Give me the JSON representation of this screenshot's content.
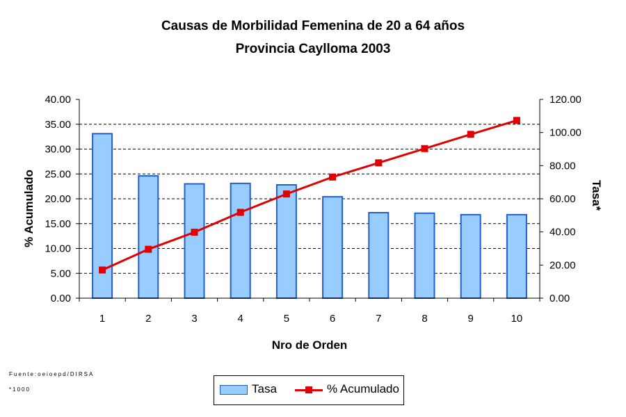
{
  "chart_data": {
    "type": "bar+line",
    "title": "Causas de Morbilidad Femenina de 20 a 64 años",
    "subtitle": "Provincia Caylloma 2003",
    "xlabel": "Nro de Orden",
    "ylabel_left": "% Acumulado",
    "ylabel_right": "Tasa*",
    "categories": [
      "1",
      "2",
      "3",
      "4",
      "5",
      "6",
      "7",
      "8",
      "9",
      "10"
    ],
    "y_left": {
      "lim": [
        0,
        40
      ],
      "ticks": [
        "0.00",
        "5.00",
        "10.00",
        "15.00",
        "20.00",
        "25.00",
        "30.00",
        "35.00",
        "40.00"
      ]
    },
    "y_right": {
      "lim": [
        0,
        120
      ],
      "ticks": [
        "0.00",
        "20.00",
        "40.00",
        "60.00",
        "80.00",
        "100.00",
        "120.00"
      ]
    },
    "series": [
      {
        "name": "Tasa",
        "kind": "bar",
        "axis": "left",
        "color": "#99ccff",
        "edge": "#1f5fd0",
        "values": [
          33.1,
          24.6,
          23.0,
          23.1,
          22.8,
          20.4,
          17.2,
          17.1,
          16.8,
          16.8
        ]
      },
      {
        "name": "% Acumulado",
        "kind": "line",
        "axis": "right",
        "color": "#e00000",
        "values": [
          17.0,
          29.5,
          39.8,
          51.8,
          62.9,
          73.1,
          81.7,
          90.3,
          98.9,
          107.3
        ]
      }
    ],
    "grid": "horizontal dashed",
    "legend_position": "bottom-center"
  },
  "footnotes": {
    "source": "Fuente:oeioepd/DIRSA",
    "note": "*1000"
  },
  "legend": {
    "bar_label": "Tasa",
    "line_label": "% Acumulado"
  }
}
